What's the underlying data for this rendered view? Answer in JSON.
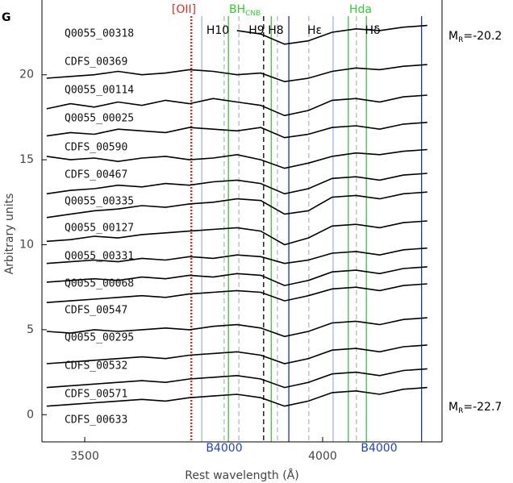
{
  "chart_data": {
    "type": "line",
    "panel_label": "G",
    "xlabel": "Rest wavelength (Å)",
    "ylabel": "Arbitrary units",
    "xlim": [
      3410,
      4251
    ],
    "ylim": [
      -1.6,
      24.4
    ],
    "xticks": [
      3500,
      4000
    ],
    "yticks": [
      0,
      5,
      10,
      15,
      20
    ],
    "x": [
      3420,
      3470,
      3520,
      3570,
      3620,
      3670,
      3720,
      3770,
      3820,
      3870,
      3920,
      3970,
      4020,
      4070,
      4120,
      4170,
      4220
    ],
    "series": [
      {
        "name": "Q0055_00318",
        "color": "#000000",
        "values": [
          null,
          null,
          null,
          null,
          null,
          null,
          null,
          null,
          22.6,
          22.4,
          21.8,
          22.0,
          22.5,
          22.7,
          22.6,
          22.8,
          22.9
        ]
      },
      {
        "name": "CDFS_00369",
        "color": "#000000",
        "values": [
          19.8,
          19.9,
          20.0,
          20.2,
          20.0,
          20.1,
          20.3,
          20.2,
          20.0,
          20.1,
          19.6,
          19.8,
          20.2,
          20.4,
          20.3,
          20.5,
          20.6
        ]
      },
      {
        "name": "Q0055_00114",
        "color": "#000000",
        "values": [
          18.0,
          18.3,
          18.1,
          18.4,
          18.2,
          18.5,
          18.3,
          18.6,
          18.4,
          18.2,
          17.6,
          17.9,
          18.5,
          18.6,
          18.4,
          18.7,
          18.8
        ]
      },
      {
        "name": "Q0055_00025",
        "color": "#000000",
        "values": [
          16.4,
          16.6,
          16.5,
          16.8,
          16.7,
          16.6,
          16.9,
          16.8,
          16.7,
          16.9,
          16.3,
          16.5,
          16.9,
          17.0,
          16.8,
          17.1,
          17.2
        ]
      },
      {
        "name": "CDFS_00590",
        "color": "#000000",
        "values": [
          15.2,
          15.0,
          15.1,
          14.9,
          15.1,
          15.2,
          15.0,
          15.1,
          15.3,
          15.0,
          14.5,
          14.8,
          15.2,
          15.4,
          15.3,
          15.5,
          15.6
        ]
      },
      {
        "name": "CDFS_00467",
        "color": "#000000",
        "values": [
          13.0,
          13.2,
          13.3,
          13.5,
          13.4,
          13.6,
          13.5,
          13.7,
          13.8,
          13.6,
          13.0,
          13.3,
          13.9,
          14.0,
          13.8,
          14.1,
          14.2
        ]
      },
      {
        "name": "Q0055_00335",
        "color": "#000000",
        "values": [
          11.6,
          11.8,
          12.0,
          12.1,
          12.3,
          12.2,
          12.4,
          12.5,
          12.7,
          12.6,
          11.8,
          12.0,
          12.8,
          12.9,
          12.7,
          13.0,
          13.1
        ]
      },
      {
        "name": "Q0055_00127",
        "color": "#000000",
        "values": [
          10.2,
          10.3,
          10.5,
          10.4,
          10.6,
          10.7,
          10.8,
          10.9,
          11.0,
          10.8,
          10.0,
          10.4,
          11.1,
          11.2,
          11.0,
          11.3,
          11.4
        ]
      },
      {
        "name": "Q0055_00331",
        "color": "#000000",
        "values": [
          8.9,
          9.0,
          9.1,
          9.0,
          9.2,
          9.1,
          9.3,
          9.2,
          9.4,
          9.3,
          8.9,
          9.1,
          9.5,
          9.6,
          9.4,
          9.7,
          9.8
        ]
      },
      {
        "name": "Q0055_00068",
        "color": "#000000",
        "values": [
          7.8,
          7.9,
          8.0,
          7.9,
          8.1,
          8.0,
          8.2,
          8.1,
          8.3,
          8.2,
          7.6,
          7.9,
          8.4,
          8.5,
          8.3,
          8.6,
          8.7
        ]
      },
      {
        "name": "CDFS_00547",
        "color": "#000000",
        "values": [
          6.6,
          6.7,
          6.8,
          6.9,
          7.0,
          6.9,
          7.1,
          7.2,
          7.3,
          7.2,
          6.7,
          7.0,
          7.4,
          7.5,
          7.3,
          7.6,
          7.7
        ]
      },
      {
        "name": "Q0055_00295",
        "color": "#000000",
        "values": [
          4.9,
          4.8,
          5.0,
          4.9,
          5.0,
          5.1,
          5.0,
          5.2,
          5.3,
          5.1,
          4.6,
          4.9,
          5.4,
          5.5,
          5.3,
          5.6,
          5.7
        ]
      },
      {
        "name": "CDFS_00532",
        "color": "#000000",
        "values": [
          3.0,
          3.1,
          3.2,
          3.3,
          3.4,
          3.3,
          3.5,
          3.6,
          3.7,
          3.5,
          3.0,
          3.3,
          3.8,
          3.9,
          3.7,
          4.0,
          4.1
        ]
      },
      {
        "name": "CDFS_00571",
        "color": "#000000",
        "values": [
          1.6,
          1.7,
          1.8,
          1.9,
          2.0,
          1.9,
          2.1,
          2.2,
          2.3,
          2.1,
          1.6,
          1.9,
          2.4,
          2.5,
          2.3,
          2.6,
          2.7
        ]
      },
      {
        "name": "CDFS_00633",
        "color": "#000000",
        "values": [
          0.5,
          0.6,
          0.7,
          0.8,
          0.9,
          0.8,
          1.0,
          1.1,
          1.2,
          1.0,
          0.5,
          0.8,
          1.3,
          1.4,
          1.2,
          1.5,
          1.6
        ]
      }
    ],
    "vlines": [
      {
        "x": 3724,
        "color": "#d03020",
        "style": "dotted"
      },
      {
        "x": 3746,
        "color": "#a8b0f0",
        "style": "solid"
      },
      {
        "x": 3793,
        "color": "#b8b8b8",
        "style": "dashed"
      },
      {
        "x": 3802,
        "color": "#40c040",
        "style": "solid"
      },
      {
        "x": 3824,
        "color": "#b8b8b8",
        "style": "dashed"
      },
      {
        "x": 3876,
        "color": "#000000",
        "style": "dashed"
      },
      {
        "x": 3892,
        "color": "#40c040",
        "style": "solid"
      },
      {
        "x": 3905,
        "color": "#b8b8b8",
        "style": "dashed"
      },
      {
        "x": 3929,
        "color": "#2030b0",
        "style": "solid"
      },
      {
        "x": 3971,
        "color": "#b8b8b8",
        "style": "dashed"
      },
      {
        "x": 4022,
        "color": "#a8b0f0",
        "style": "solid"
      },
      {
        "x": 4054,
        "color": "#40c040",
        "style": "solid"
      },
      {
        "x": 4071,
        "color": "#b8b8b8",
        "style": "dashed"
      },
      {
        "x": 4092,
        "color": "#40c040",
        "style": "solid"
      },
      {
        "x": 4208,
        "color": "#2030b0",
        "style": "solid"
      }
    ],
    "annotations": [
      {
        "text": "[OII]",
        "color": "#e03020"
      },
      {
        "text": "H10",
        "color": "#000000"
      },
      {
        "text": "BH",
        "sub": "CNB",
        "color": "#30d030"
      },
      {
        "text": "H9",
        "color": "#000000"
      },
      {
        "text": "H8",
        "color": "#000000"
      },
      {
        "text": "Hε",
        "color": "#000000"
      },
      {
        "text": "Hda",
        "color": "#30d030"
      },
      {
        "text": "Hδ",
        "color": "#000000"
      },
      {
        "text": "B4000",
        "color": "#2040d0"
      },
      {
        "text": "B4000",
        "color": "#2040d0"
      },
      {
        "text": "M",
        "sub": "R",
        "rest": "=-20.2",
        "color": "#000000"
      },
      {
        "text": "M",
        "sub": "R",
        "rest": "=-22.7",
        "color": "#000000"
      }
    ]
  }
}
